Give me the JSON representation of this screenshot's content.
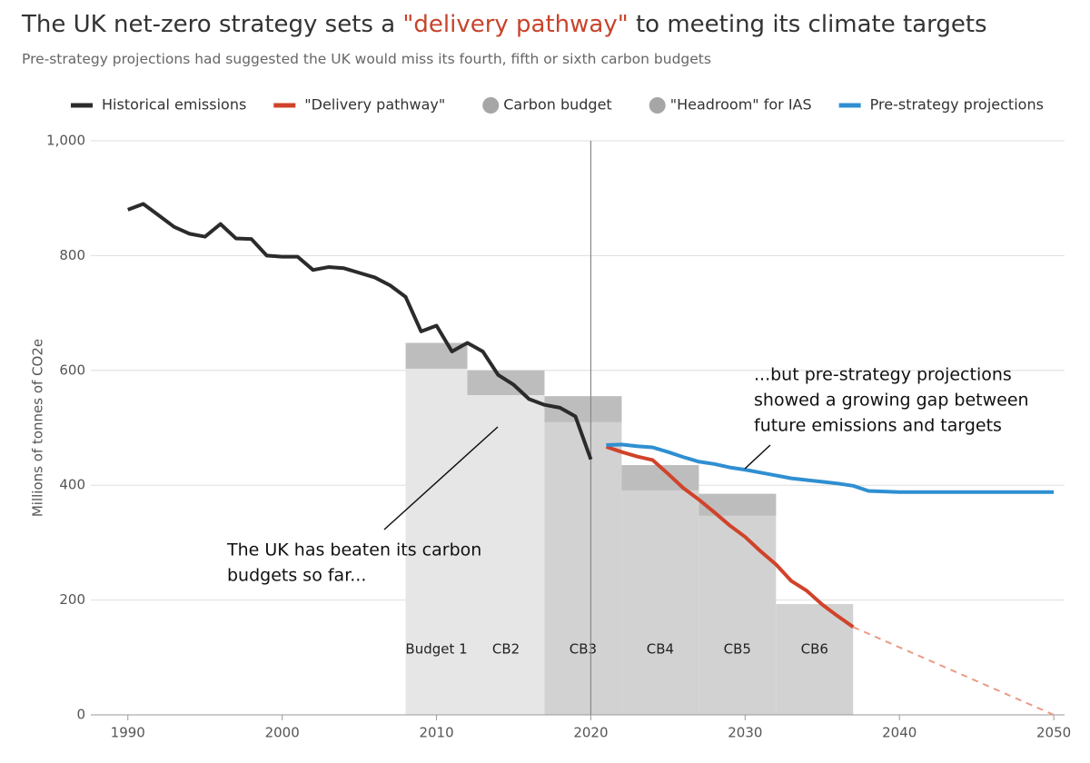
{
  "chart_data": {
    "type": "line",
    "title_parts": [
      "The UK net-zero strategy sets a ",
      "\"delivery pathway\"",
      " to meeting its climate targets"
    ],
    "subtitle": "Pre-strategy projections had suggested the UK would miss its fourth, fifth or sixth carbon budgets",
    "y_label": "Millions of tonnes of CO2e",
    "xlim": [
      1987.6,
      2050.7
    ],
    "xticks": [
      1990,
      2000,
      2010,
      2020,
      2030,
      2040,
      2050
    ],
    "ylim": [
      0,
      1000
    ],
    "yticks": [
      0,
      200,
      400,
      600,
      800,
      {
        "value": 1000,
        "label": "1,000"
      }
    ],
    "grid": true,
    "marker_line_x": 2020,
    "series": [
      {
        "name": "Historical emissions",
        "color": "#2b2b2b",
        "x": [
          1990,
          1991,
          1992,
          1993,
          1994,
          1995,
          1996,
          1997,
          1998,
          1999,
          2000,
          2001,
          2002,
          2003,
          2004,
          2005,
          2006,
          2007,
          2008,
          2009,
          2010,
          2011,
          2012,
          2013,
          2014,
          2015,
          2016,
          2017,
          2018,
          2019,
          2020
        ],
        "values": [
          880,
          890,
          870,
          850,
          838,
          833,
          855,
          830,
          829,
          800,
          798,
          798,
          775,
          780,
          778,
          770,
          762,
          748,
          728,
          668,
          678,
          633,
          648,
          633,
          592,
          575,
          550,
          540,
          535,
          520,
          445
        ]
      },
      {
        "name": "\"Delivery pathway\"",
        "color": "#d0432a",
        "x": [
          2021,
          2022,
          2023,
          2024,
          2025,
          2026,
          2027,
          2028,
          2029,
          2030,
          2031,
          2032,
          2033,
          2034,
          2035,
          2036,
          2037
        ],
        "values": [
          467,
          458,
          450,
          444,
          420,
          395,
          375,
          353,
          330,
          310,
          285,
          262,
          233,
          216,
          192,
          172,
          153
        ],
        "extension_x": [
          2037,
          2050
        ],
        "extension_values": [
          153,
          0
        ],
        "extension_color": "#eb9a86"
      },
      {
        "name": "Pre-strategy projections",
        "color": "#2f8fd1",
        "x": [
          2021,
          2022,
          2023,
          2024,
          2025,
          2026,
          2027,
          2028,
          2029,
          2030,
          2031,
          2032,
          2033,
          2034,
          2035,
          2036,
          2037,
          2038,
          2039,
          2040,
          2041,
          2042,
          2043,
          2044,
          2045,
          2046,
          2047,
          2048,
          2049,
          2050
        ],
        "values": [
          470,
          471,
          468,
          466,
          458,
          449,
          441,
          437,
          431,
          427,
          422,
          417,
          412,
          409,
          406,
          403,
          399,
          390,
          389,
          388,
          388,
          388,
          388,
          388,
          388,
          388,
          388,
          388,
          388,
          388
        ]
      }
    ],
    "budget_legend": "Carbon budget",
    "headroom_legend": "\"Headroom\" for IAS",
    "legend_marker_color": "#a6a6a6",
    "headroom_color": "#bdbdbd",
    "budgets": [
      {
        "label": "Budget 1",
        "start": 2008,
        "end": 2012,
        "value": 648,
        "headroom": 45,
        "color": "#e6e6e6"
      },
      {
        "label": "CB2",
        "start": 2012,
        "end": 2017,
        "value": 600,
        "headroom": 43,
        "color": "#e6e6e6"
      },
      {
        "label": "CB3",
        "start": 2017,
        "end": 2022,
        "value": 555,
        "headroom": 45,
        "color": "#d2d2d2"
      },
      {
        "label": "CB4",
        "start": 2022,
        "end": 2027,
        "value": 435,
        "headroom": 44,
        "color": "#d2d2d2"
      },
      {
        "label": "CB5",
        "start": 2027,
        "end": 2032,
        "value": 385,
        "headroom": 38,
        "color": "#d2d2d2"
      },
      {
        "label": "CB6",
        "start": 2032,
        "end": 2037,
        "value": 193,
        "headroom": null,
        "color": "#d2d2d2"
      }
    ],
    "annotations": [
      {
        "lines": [
          "The UK has beaten its carbon",
          "budgets so far..."
        ]
      },
      {
        "lines": [
          "...but pre-strategy projections",
          "showed a growing gap between",
          "future emissions and targets"
        ]
      }
    ]
  }
}
